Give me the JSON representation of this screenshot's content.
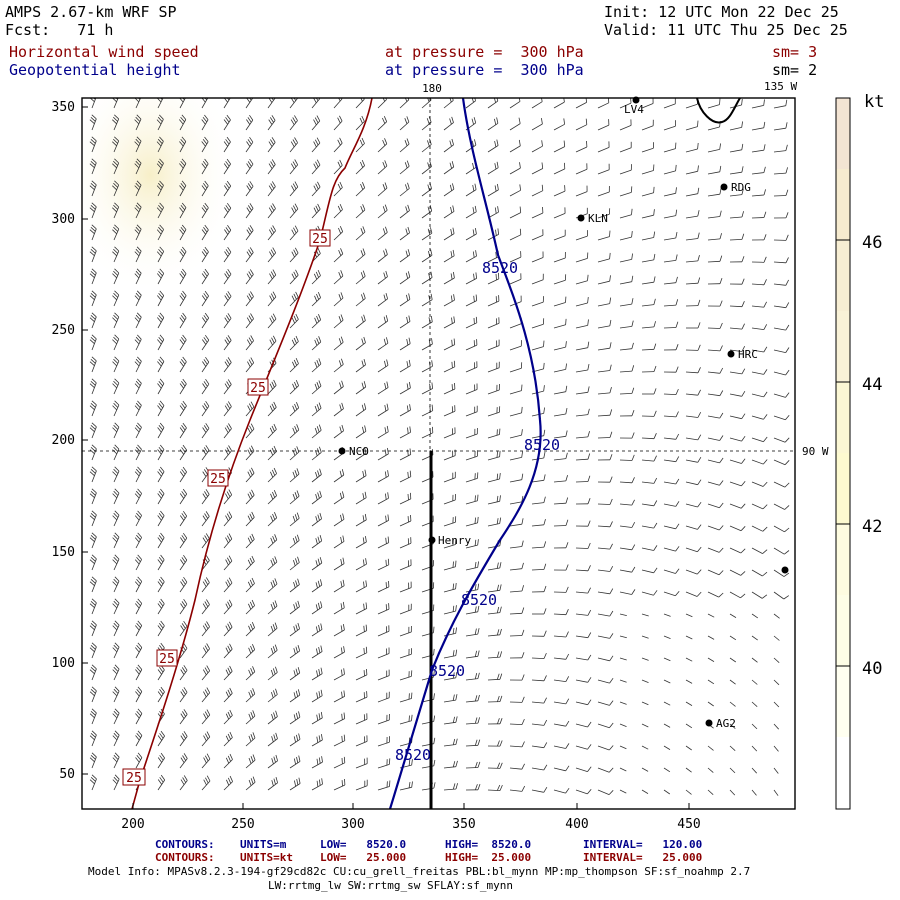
{
  "header": {
    "model": "AMPS 2.67-km WRF SP",
    "fcst": "Fcst:   71 h",
    "init": "Init: 12 UTC Mon 22 Dec 25",
    "valid": "Valid: 11 UTC Thu 25 Dec 25",
    "field1": "Horizontal wind speed",
    "field2": "Geopotential height",
    "pressure1": "at pressure =  300 hPa",
    "pressure2": "at pressure =  300 hPa",
    "sm1": "sm= 3",
    "sm2": "sm= 2"
  },
  "map": {
    "meridian_top_label": "180",
    "corner_label": "135 W",
    "lat_right_label": "90 W",
    "x_ticks": [
      "200",
      "250",
      "300",
      "350",
      "400",
      "450"
    ],
    "y_ticks": [
      "350",
      "300",
      "250",
      "200",
      "150",
      "100",
      "50"
    ],
    "height_contour_labels": [
      "8520",
      "8520",
      "8520",
      "8520",
      "8520"
    ],
    "speed_contour_labels": [
      "25",
      "25",
      "25",
      "25",
      "25"
    ],
    "stations": [
      "LV4",
      "RDG",
      "KLN",
      "HRC",
      "NCO",
      "Henry",
      "AG2"
    ],
    "colorbar": {
      "unit": "kt",
      "ticks": [
        "46",
        "44",
        "42",
        "40"
      ],
      "colors": [
        "#f3e4d3",
        "#f6ebcf",
        "#f9f2c5",
        "#fdfad0",
        "#fefee6",
        "#ffffff"
      ]
    }
  },
  "footer": {
    "c1_label": "CONTOURS:",
    "c1_units": "UNITS=m",
    "c1_low": "LOW=   8520.0",
    "c1_high": "HIGH=  8520.0",
    "c1_interval": "INTERVAL=   120.00",
    "c2_label": "CONTOURS:",
    "c2_units": "UNITS=kt",
    "c2_low": "LOW=   25.000",
    "c2_high": "HIGH=  25.000",
    "c2_interval": "INTERVAL=   25.000",
    "info1": "Model Info: MPASv8.2.3-194-gf29cd82c CU:cu_grell_freitas PBL:bl_mynn MP:mp_thompson SF:sf_noahmp 2.7",
    "info2": "LW:rrtmg_lw SW:rrtmg_sw SFLAY:sf_mynn"
  }
}
